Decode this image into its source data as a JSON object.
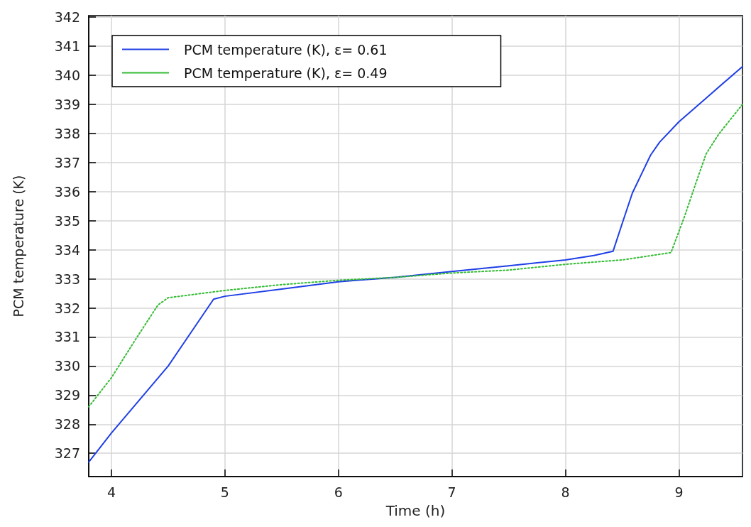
{
  "chart_data": {
    "type": "line",
    "xlabel": "Time (h)",
    "ylabel": "PCM temperature (K)",
    "xlim": [
      3.8,
      9.56
    ],
    "xticks": [
      4,
      5,
      6,
      7,
      8,
      9
    ],
    "ylim": [
      326.2,
      342.05
    ],
    "yticks": [
      327,
      328,
      329,
      330,
      331,
      332,
      333,
      334,
      335,
      336,
      337,
      338,
      339,
      340,
      341,
      342
    ],
    "grid": true,
    "legend": "top left",
    "marker": "none",
    "series": [
      {
        "name": "PCM temperature (K), ε= 0.61",
        "color": "#1f3fe6",
        "line_style": "solid",
        "x": [
          3.8,
          4.0,
          4.5,
          4.9,
          5.0,
          5.5,
          6.0,
          6.5,
          7.0,
          7.5,
          8.0,
          8.25,
          8.42,
          8.5,
          8.59,
          8.67,
          8.75,
          8.83,
          9.0,
          9.25,
          9.56
        ],
        "values": [
          326.7,
          327.7,
          330.0,
          332.3,
          332.4,
          332.65,
          332.9,
          333.05,
          333.25,
          333.45,
          333.65,
          333.8,
          333.95,
          334.9,
          335.95,
          336.6,
          337.25,
          337.7,
          338.4,
          339.25,
          340.3
        ]
      },
      {
        "name": "PCM temperature (K), ε= 0.49",
        "color": "#33bb33",
        "line_style": "dotted",
        "x": [
          3.8,
          4.0,
          4.21,
          4.41,
          4.5,
          5.0,
          5.5,
          6.0,
          6.5,
          7.0,
          7.5,
          8.0,
          8.5,
          8.93,
          9.05,
          9.15,
          9.24,
          9.35,
          9.56
        ],
        "values": [
          328.6,
          329.6,
          330.9,
          332.1,
          332.35,
          332.6,
          332.8,
          332.95,
          333.05,
          333.2,
          333.3,
          333.5,
          333.65,
          333.9,
          335.15,
          336.3,
          337.3,
          337.97,
          339.0
        ]
      }
    ]
  }
}
